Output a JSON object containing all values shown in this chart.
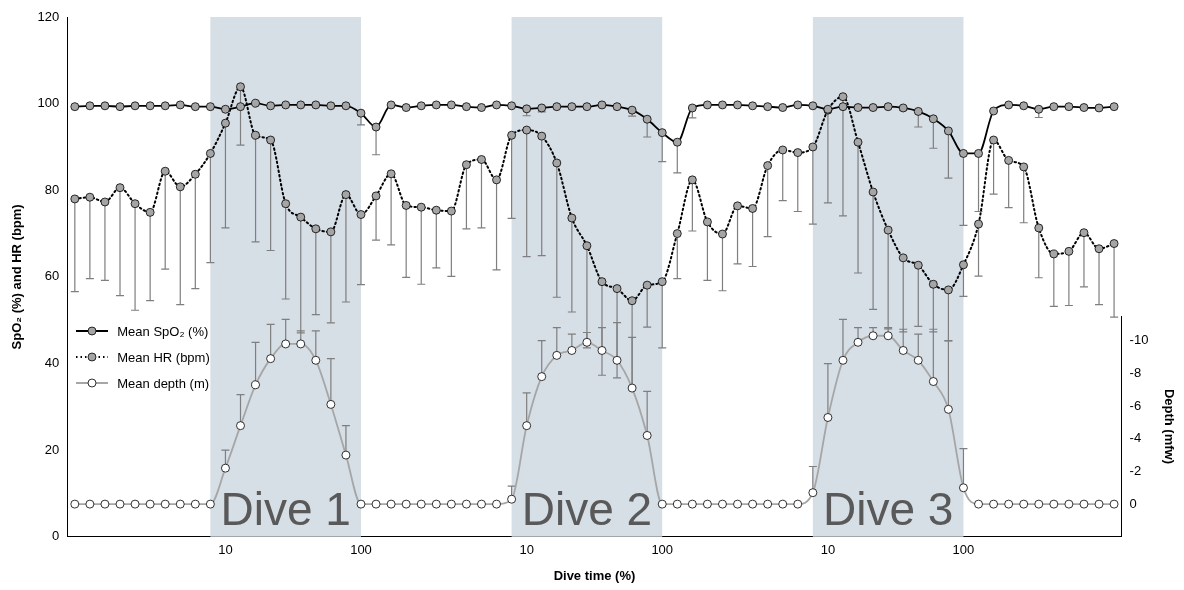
{
  "chart_data": {
    "type": "line",
    "xlabel": "Dive time (%)",
    "ylabel": "SpO₂ (%) and HR (bpm)",
    "y2label": "Depth (mfw)",
    "categories": [
      null,
      null,
      null,
      null,
      null,
      null,
      null,
      null,
      null,
      null,
      "10",
      null,
      null,
      null,
      null,
      null,
      null,
      null,
      null,
      "100",
      null,
      null,
      null,
      null,
      null,
      null,
      null,
      null,
      null,
      null,
      "10",
      null,
      null,
      null,
      null,
      null,
      null,
      null,
      null,
      "100",
      null,
      null,
      null,
      null,
      null,
      null,
      null,
      null,
      null,
      null,
      "10",
      null,
      null,
      null,
      null,
      null,
      null,
      null,
      null,
      "100",
      null,
      null,
      null,
      null,
      null,
      null,
      null,
      null,
      null,
      null
    ],
    "ylim": [
      0,
      120
    ],
    "yticks": [
      0,
      20,
      40,
      60,
      80,
      100,
      120
    ],
    "y2lim": [
      2,
      -11.5
    ],
    "y2ticks": [
      0,
      -2,
      -4,
      -6,
      -8,
      -10
    ],
    "marker": "circle",
    "legend": "left",
    "annotations": [
      "Dive 1",
      "Dive 2",
      "Dive 3"
    ],
    "series": [
      {
        "name": "Mean SpO₂ (%)",
        "color": "#000000",
        "line_style": "solid",
        "values": [
          99.3,
          99.5,
          99.5,
          99.3,
          99.5,
          99.5,
          99.5,
          99.7,
          99.3,
          99.3,
          98.7,
          99.3,
          100.1,
          99.5,
          99.7,
          99.7,
          99.7,
          99.5,
          99.5,
          97.8,
          94.6,
          99.7,
          99.1,
          99.5,
          99.7,
          99.7,
          99.3,
          99.1,
          99.7,
          99.5,
          98.8,
          99.0,
          99.3,
          99.3,
          99.3,
          99.7,
          99.3,
          98.5,
          96.4,
          93.3,
          91.1,
          99.0,
          99.7,
          99.7,
          99.7,
          99.5,
          99.3,
          99.1,
          99.7,
          99.5,
          98.7,
          99.3,
          99.1,
          99.1,
          99.3,
          99.0,
          98.2,
          96.5,
          93.7,
          88.5,
          88.5,
          98.3,
          99.7,
          99.5,
          98.7,
          99.3,
          99.3,
          99.1,
          99.0,
          99.3
        ],
        "errors": [
          null,
          null,
          null,
          null,
          null,
          null,
          null,
          null,
          null,
          null,
          null,
          null,
          null,
          null,
          null,
          null,
          null,
          null,
          null,
          [
            95.1,
            97.8
          ],
          [
            88.2,
            94.6
          ],
          null,
          null,
          null,
          null,
          null,
          null,
          null,
          null,
          null,
          [
            97.2,
            98.8
          ],
          [
            98.1,
            99.0
          ],
          null,
          null,
          null,
          null,
          null,
          [
            97.1,
            98.5
          ],
          [
            92.3,
            96.4
          ],
          [
            86.6,
            93.3
          ],
          [
            84.0,
            91.1
          ],
          [
            96.7,
            99.0
          ],
          null,
          null,
          null,
          null,
          null,
          null,
          null,
          null,
          null,
          null,
          null,
          null,
          null,
          [
            98.5,
            99.0
          ],
          [
            94.6,
            98.2
          ],
          [
            89.7,
            96.5
          ],
          [
            82.8,
            93.7
          ],
          [
            71.9,
            88.5
          ],
          [
            75.1,
            88.5
          ],
          null,
          null,
          null,
          [
            96.8,
            98.7
          ],
          null,
          null,
          null,
          null,
          null
        ]
      },
      {
        "name": "Mean HR (bpm)",
        "color": "#000000",
        "line_style": "dotted",
        "values": [
          78.0,
          78.4,
          77.3,
          80.6,
          76.9,
          74.9,
          84.4,
          80.8,
          83.7,
          88.5,
          95.5,
          103.9,
          92.7,
          91.6,
          76.9,
          73.8,
          71.1,
          70.4,
          79.0,
          74.4,
          78.7,
          83.8,
          76.5,
          76.1,
          75.4,
          75.2,
          85.9,
          87.1,
          82.4,
          92.7,
          93.9,
          92.5,
          86.3,
          73.6,
          67.2,
          58.9,
          57.3,
          54.5,
          58.1,
          58.9,
          70.0,
          82.4,
          72.7,
          69.9,
          76.4,
          75.8,
          85.7,
          89.3,
          88.7,
          90.0,
          98.5,
          101.6,
          91.1,
          79.6,
          70.8,
          64.4,
          62.7,
          58.3,
          57.0,
          62.8,
          72.2,
          91.6,
          86.9,
          85.4,
          71.3,
          65.3,
          65.9,
          70.2,
          66.5,
          67.7
        ],
        "errors": [
          [
            56.6,
            78.0
          ],
          [
            59.6,
            78.4
          ],
          [
            59.2,
            77.3
          ],
          [
            55.7,
            80.6
          ],
          [
            52.3,
            76.9
          ],
          [
            54.5,
            74.9
          ],
          [
            61.8,
            84.4
          ],
          [
            53.6,
            80.8
          ],
          [
            57.3,
            83.7
          ],
          [
            63.3,
            88.5
          ],
          [
            71.3,
            95.5
          ],
          [
            90.4,
            103.9
          ],
          [
            68.1,
            92.7
          ],
          [
            66.1,
            91.6
          ],
          [
            54.9,
            76.9
          ],
          [
            47.1,
            73.8
          ],
          [
            51.3,
            71.1
          ],
          [
            49.4,
            70.4
          ],
          [
            54.2,
            79.0
          ],
          [
            58.2,
            74.4
          ],
          [
            68.5,
            78.7
          ],
          [
            67.4,
            83.8
          ],
          [
            59.9,
            76.5
          ],
          [
            58.3,
            76.1
          ],
          [
            62.1,
            75.4
          ],
          [
            60.1,
            75.2
          ],
          [
            71.1,
            85.9
          ],
          [
            71.3,
            87.1
          ],
          [
            61.6,
            82.4
          ],
          [
            73.5,
            92.7
          ],
          [
            64.7,
            93.9
          ],
          [
            64.9,
            92.5
          ],
          [
            55.3,
            86.3
          ],
          [
            51.9,
            73.6
          ],
          [
            43.6,
            67.2
          ],
          [
            37.3,
            58.9
          ],
          [
            36.7,
            57.3
          ],
          [
            34.6,
            54.5
          ],
          [
            48.4,
            58.1
          ],
          [
            43.6,
            58.9
          ],
          [
            59.6,
            70.0
          ],
          [
            70.6,
            82.4
          ],
          [
            59.2,
            72.7
          ],
          [
            56.8,
            69.9
          ],
          [
            63.0,
            76.4
          ],
          [
            62.4,
            75.8
          ],
          [
            69.3,
            85.7
          ],
          [
            77.6,
            89.3
          ],
          [
            75.1,
            88.7
          ],
          [
            72.2,
            90.0
          ],
          [
            77.1,
            98.5
          ],
          [
            74.1,
            101.6
          ],
          [
            60.9,
            91.1
          ],
          [
            52.5,
            79.6
          ],
          [
            48.0,
            70.8
          ],
          [
            47.3,
            64.4
          ],
          [
            48.6,
            62.7
          ],
          [
            47.3,
            58.3
          ],
          [
            45.2,
            57.0
          ],
          [
            55.5,
            62.8
          ],
          [
            60.2,
            72.2
          ],
          [
            79.1,
            91.6
          ],
          [
            76.0,
            86.9
          ],
          [
            72.5,
            85.4
          ],
          [
            59.8,
            71.3
          ],
          [
            53.2,
            65.3
          ],
          [
            53.4,
            65.9
          ],
          [
            57.7,
            70.2
          ],
          [
            53.6,
            66.5
          ],
          [
            50.7,
            67.7
          ]
        ]
      },
      {
        "name": "Mean depth (m)",
        "color": "#a6a6a6",
        "line_style": "solid",
        "axis": "y2",
        "values": [
          0,
          0,
          0,
          0,
          0,
          0,
          0,
          0,
          0,
          0,
          -2.2,
          -4.8,
          -7.3,
          -8.9,
          -9.8,
          -9.8,
          -8.8,
          -6.1,
          -3.0,
          0,
          0,
          0,
          0,
          0,
          0,
          0,
          0,
          0,
          0,
          -0.3,
          -4.8,
          -7.8,
          -9.1,
          -9.4,
          -9.9,
          -9.4,
          -8.8,
          -7.1,
          -4.2,
          0,
          0,
          0,
          0,
          0,
          0,
          0,
          0,
          0,
          0,
          -0.7,
          -5.3,
          -8.8,
          -9.9,
          -10.3,
          -10.3,
          -9.4,
          -8.8,
          -7.5,
          -5.8,
          -1.0,
          0,
          0,
          0,
          0,
          0,
          0,
          0,
          0,
          0,
          0
        ],
        "errors": [
          null,
          null,
          null,
          null,
          null,
          null,
          null,
          null,
          null,
          null,
          [
            -3.3,
            -2.2
          ],
          [
            -6.7,
            -4.8
          ],
          [
            -9.9,
            -7.3
          ],
          [
            -11.0,
            -8.9
          ],
          [
            -11.3,
            -9.8
          ],
          [
            -10.6,
            -9.8
          ],
          [
            -10.6,
            -8.8
          ],
          [
            -8.9,
            -6.1
          ],
          [
            -4.8,
            -3.0
          ],
          null,
          null,
          null,
          null,
          null,
          null,
          null,
          null,
          null,
          null,
          [
            -1.1,
            -0.3
          ],
          [
            -6.8,
            -4.8
          ],
          [
            -10.0,
            -7.8
          ],
          [
            -10.8,
            -9.1
          ],
          [
            -10.4,
            -9.4
          ],
          [
            -10.5,
            -9.9
          ],
          [
            -10.8,
            -9.4
          ],
          [
            -11.1,
            -8.8
          ],
          [
            -10.2,
            -7.1
          ],
          [
            -6.9,
            -4.2
          ],
          null,
          null,
          null,
          null,
          null,
          null,
          null,
          null,
          null,
          null,
          [
            -2.3,
            -0.7
          ],
          [
            -8.6,
            -5.3
          ],
          [
            -11.3,
            -8.8
          ],
          [
            -10.8,
            -9.9
          ],
          [
            -10.8,
            -10.3
          ],
          [
            -10.8,
            -10.3
          ],
          [
            -10.7,
            -9.4
          ],
          [
            -10.4,
            -8.8
          ],
          [
            -10.7,
            -7.5
          ],
          [
            -10.0,
            -5.8
          ],
          [
            -3.4,
            -1.0
          ],
          null,
          null,
          null,
          null,
          null,
          null,
          null,
          null,
          null,
          null
        ]
      }
    ]
  }
}
